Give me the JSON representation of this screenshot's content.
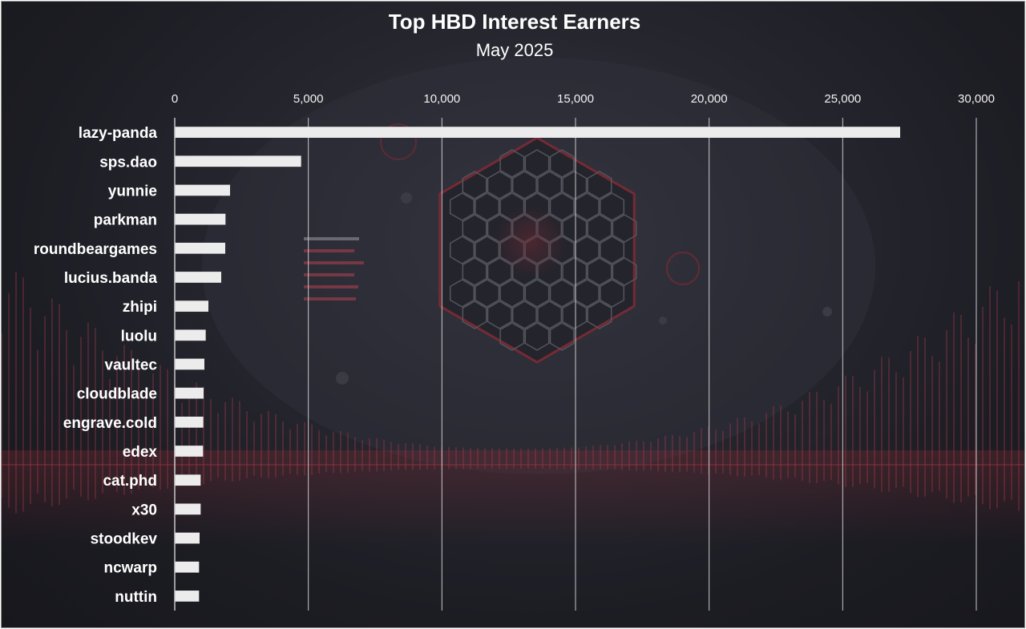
{
  "chart_data": {
    "type": "bar",
    "orientation": "horizontal",
    "title": "Top HBD Interest Earners",
    "subtitle": "May 2025",
    "categories": [
      "lazy-panda",
      "sps.dao",
      "yunnie",
      "parkman",
      "roundbeargames",
      "lucius.banda",
      "zhipi",
      "luolu",
      "vaultec",
      "cloudblade",
      "engrave.cold",
      "edex",
      "cat.phd",
      "x30",
      "stoodkev",
      "ncwarp",
      "nuttin"
    ],
    "values": [
      27150,
      4730,
      2070,
      1900,
      1890,
      1740,
      1260,
      1160,
      1110,
      1080,
      1070,
      1060,
      970,
      970,
      930,
      910,
      910
    ],
    "xlim": [
      0,
      30000
    ],
    "xticks": [
      "0",
      "5,000",
      "10,000",
      "15,000",
      "20,000",
      "25,000",
      "30,000"
    ],
    "xtick_values": [
      0,
      5000,
      10000,
      15000,
      20000,
      25000,
      30000
    ],
    "grid": true,
    "legend": "none",
    "colors": {
      "bar": "#ececec",
      "grid": "#c8c8c8",
      "text": "#ffffff",
      "background": "#1e1e26",
      "accent": "#8a2a35"
    }
  }
}
